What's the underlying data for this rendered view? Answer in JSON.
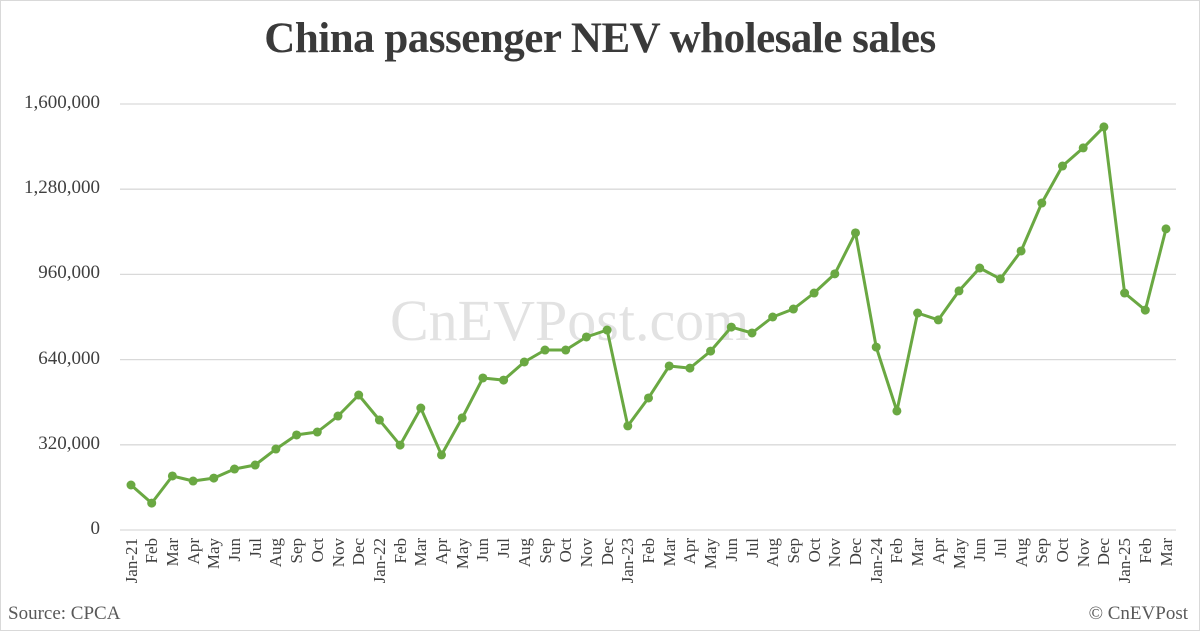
{
  "chart_data": {
    "type": "line",
    "title": "China passenger NEV wholesale sales",
    "xlabel": "",
    "ylabel": "",
    "ylim": [
      0,
      1600000
    ],
    "yticks": [
      0,
      320000,
      640000,
      960000,
      1280000,
      1600000
    ],
    "ytick_labels": [
      "0",
      "320,000",
      "640,000",
      "960,000",
      "1,280,000",
      "1,600,000"
    ],
    "grid": true,
    "legend": null,
    "line_color": "#6aa842",
    "categories": [
      "Jan-21",
      "Feb",
      "Mar",
      "Apr",
      "May",
      "Jun",
      "Jul",
      "Aug",
      "Sep",
      "Oct",
      "Nov",
      "Dec",
      "Jan-22",
      "Feb",
      "Mar",
      "Apr",
      "May",
      "Jun",
      "Jul",
      "Aug",
      "Sep",
      "Oct",
      "Nov",
      "Dec",
      "Jan-23",
      "Feb",
      "Mar",
      "Apr",
      "May",
      "Jun",
      "Jul",
      "Aug",
      "Sep",
      "Oct",
      "Nov",
      "Dec",
      "Jan-24",
      "Feb",
      "Mar",
      "Apr",
      "May",
      "Jun",
      "Jul",
      "Aug",
      "Sep",
      "Oct",
      "Nov",
      "Dec",
      "Jan-25",
      "Feb",
      "Mar"
    ],
    "series": [
      {
        "name": "NEV wholesale sales",
        "values": [
          169000,
          101000,
          203000,
          184000,
          195000,
          229000,
          244000,
          304000,
          357000,
          368000,
          428000,
          507000,
          413000,
          319000,
          458000,
          282000,
          421000,
          571000,
          563000,
          631000,
          676000,
          676000,
          725000,
          751000,
          391000,
          496000,
          616000,
          608000,
          672000,
          762000,
          740000,
          800000,
          830000,
          890000,
          962000,
          1116000,
          687000,
          447000,
          815000,
          789000,
          898000,
          984000,
          943000,
          1048000,
          1228000,
          1367000,
          1435000,
          1514000,
          890000,
          826000,
          1131000
        ]
      }
    ],
    "watermark": "CnEVPost.com",
    "source": "Source: CPCA",
    "copyright": "© CnEVPost"
  }
}
